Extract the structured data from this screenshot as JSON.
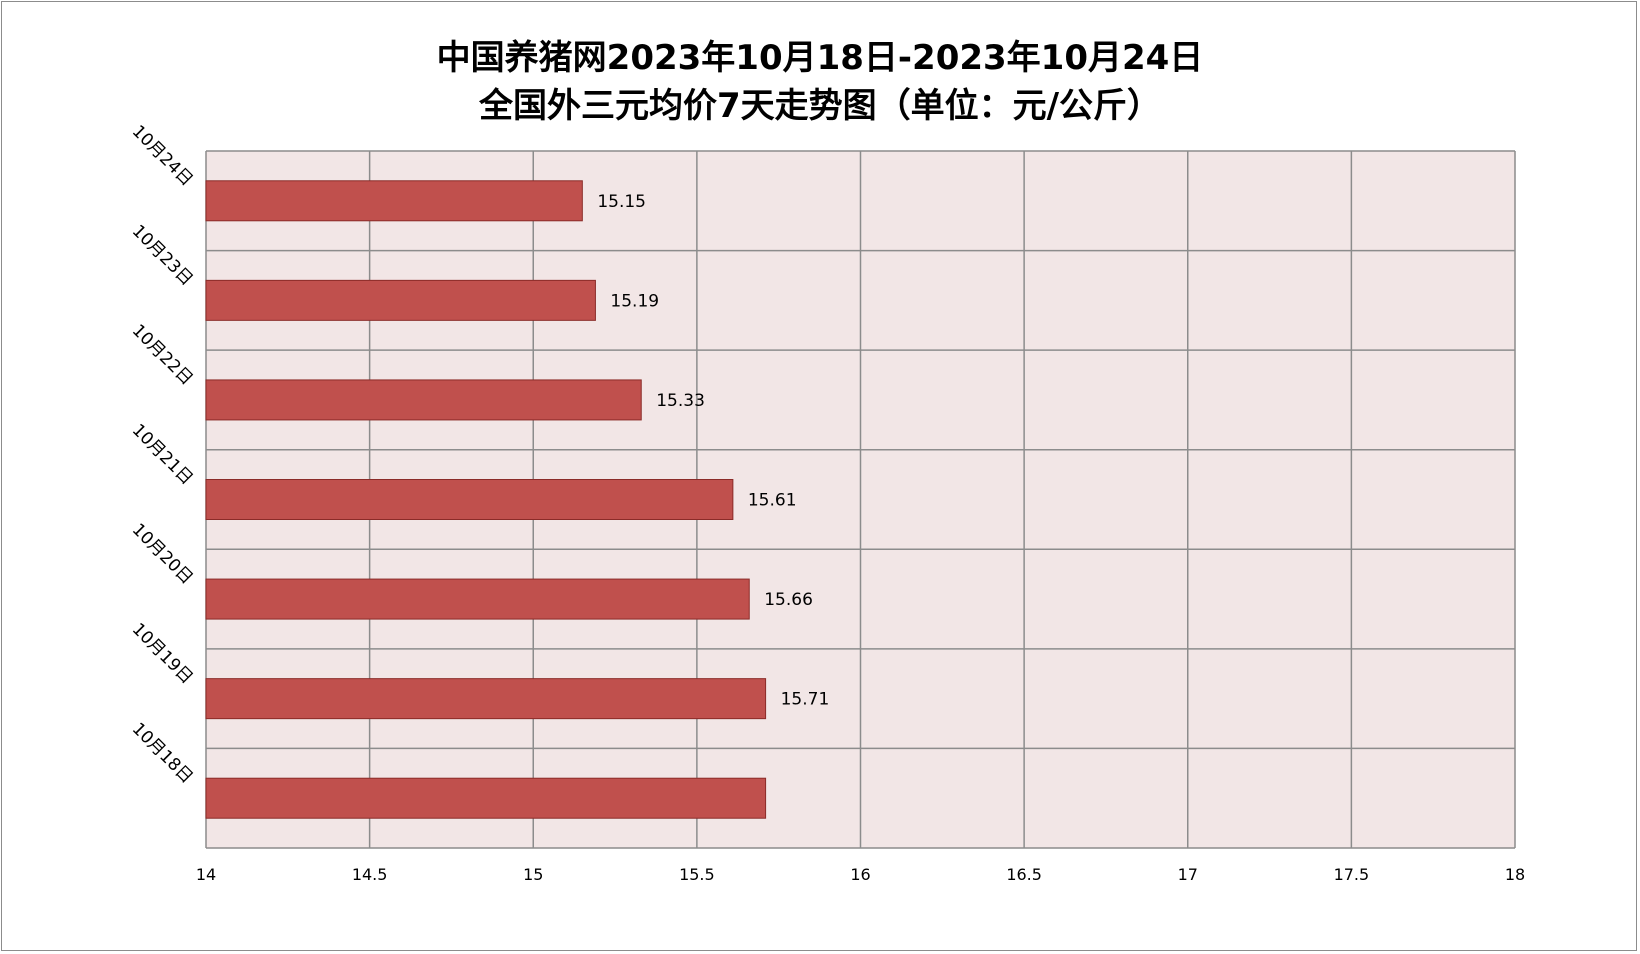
{
  "chart_data": {
    "type": "bar",
    "orientation": "horizontal",
    "title": [
      "中国养猪网2023年10月18日-2023年10月24日",
      "全国外三元均价7天走势图（单位：元/公斤）"
    ],
    "categories": [
      "10月24日",
      "10月23日",
      "10月22日",
      "10月21日",
      "10月20日",
      "10月19日",
      "10月18日"
    ],
    "values": [
      15.15,
      15.19,
      15.33,
      15.61,
      15.66,
      15.71,
      15.71
    ],
    "data_labels": [
      "15.15",
      "15.19",
      "15.33",
      "15.61",
      "15.66",
      "15.71",
      ""
    ],
    "x_ticks": [
      "14",
      "14.5",
      "15",
      "15.5",
      "16",
      "16.5",
      "17",
      "17.5",
      "18"
    ],
    "xlim": [
      14,
      18
    ],
    "grid": true,
    "legend": "none",
    "colors": {
      "bar_fill": "#c0504d",
      "bar_stroke": "#8b2b28",
      "plot_bg": "#f2e6e6",
      "grid": "#8c8c8c"
    }
  }
}
